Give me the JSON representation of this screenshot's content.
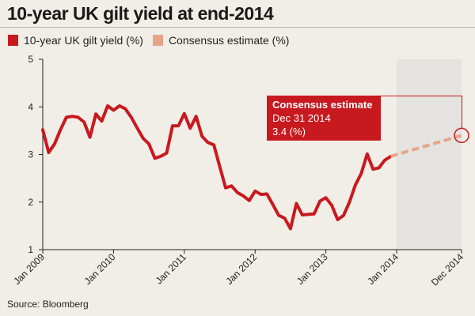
{
  "title": "10-year UK gilt yield at end-2014",
  "source": "Source: Bloomberg",
  "colors": {
    "actual": "#c8191f",
    "estimate": "#e8a488",
    "forecast_band": "#e4e3df",
    "background": "#f1eee7"
  },
  "callout": {
    "heading": "Consensus estimate",
    "date": "Dec 31 2014",
    "value": "3.4 (%)"
  },
  "chart_data": {
    "type": "line",
    "title": "10-year UK gilt yield at end-2014",
    "xlabel": "",
    "ylabel": "",
    "ylim": [
      1,
      5
    ],
    "yticks": [
      1,
      2,
      3,
      4,
      5
    ],
    "xticks": [
      "Jan 2009",
      "Jan 2010",
      "Jan 2011",
      "Jan 2012",
      "Jan 2013",
      "Jan 2014",
      "Dec 2014"
    ],
    "grid": false,
    "legend_position": "top-left",
    "forecast_band": [
      "Jan 2014",
      "Dec 2014"
    ],
    "series": [
      {
        "name": "10-year UK gilt yield (%)",
        "x": [
          "Jan 2009",
          "Feb 2009",
          "Mar 2009",
          "Apr 2009",
          "May 2009",
          "Jun 2009",
          "Jul 2009",
          "Aug 2009",
          "Sep 2009",
          "Oct 2009",
          "Nov 2009",
          "Dec 2009",
          "Jan 2010",
          "Feb 2010",
          "Mar 2010",
          "Apr 2010",
          "May 2010",
          "Jun 2010",
          "Jul 2010",
          "Aug 2010",
          "Sep 2010",
          "Oct 2010",
          "Nov 2010",
          "Dec 2010",
          "Jan 2011",
          "Feb 2011",
          "Mar 2011",
          "Apr 2011",
          "May 2011",
          "Jun 2011",
          "Jul 2011",
          "Aug 2011",
          "Sep 2011",
          "Oct 2011",
          "Nov 2011",
          "Dec 2011",
          "Jan 2012",
          "Feb 2012",
          "Mar 2012",
          "Apr 2012",
          "May 2012",
          "Jun 2012",
          "Jul 2012",
          "Aug 2012",
          "Sep 2012",
          "Oct 2012",
          "Nov 2012",
          "Dec 2012",
          "Jan 2013",
          "Feb 2013",
          "Mar 2013",
          "Apr 2013",
          "May 2013",
          "Jun 2013",
          "Jul 2013",
          "Aug 2013",
          "Sep 2013",
          "Oct 2013",
          "Nov 2013",
          "Dec 2013"
        ],
        "values": [
          3.52,
          3.04,
          3.22,
          3.52,
          3.78,
          3.8,
          3.78,
          3.68,
          3.36,
          3.85,
          3.7,
          4.02,
          3.93,
          4.02,
          3.96,
          3.78,
          3.56,
          3.34,
          3.22,
          2.92,
          2.96,
          3.03,
          3.6,
          3.6,
          3.86,
          3.55,
          3.8,
          3.38,
          3.25,
          3.2,
          2.75,
          2.3,
          2.34,
          2.2,
          2.13,
          2.03,
          2.23,
          2.16,
          2.17,
          1.95,
          1.72,
          1.66,
          1.44,
          1.97,
          1.73,
          1.74,
          1.75,
          2.02,
          2.09,
          1.93,
          1.63,
          1.72,
          2.0,
          2.36,
          2.6,
          3.01,
          2.69,
          2.72,
          2.88,
          2.96
        ]
      },
      {
        "name": "Consensus estimate (%)",
        "x": [
          "Dec 2013",
          "Dec 2014"
        ],
        "values": [
          2.96,
          3.4
        ]
      }
    ]
  }
}
